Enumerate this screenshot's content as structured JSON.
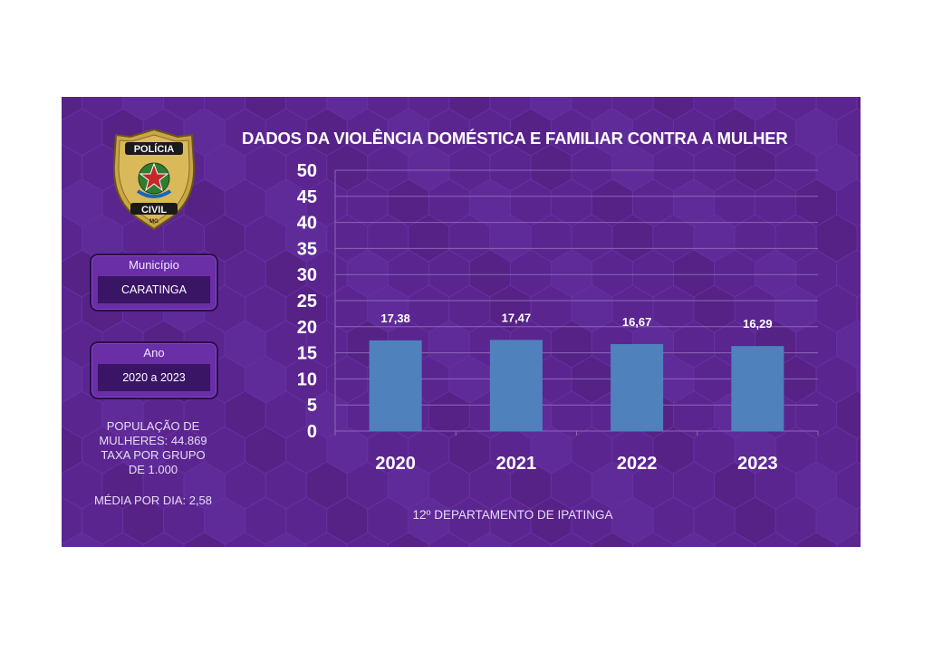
{
  "badge": {
    "top_text": "POLÍCIA",
    "bottom_text": "CIVIL",
    "state": "MG"
  },
  "filters": {
    "municipio": {
      "label": "Município",
      "value": "CARATINGA"
    },
    "ano": {
      "label": "Ano",
      "value": "2020 a 2023"
    }
  },
  "info": {
    "population": "POPULAÇÃO DE\nMULHERES: 44.869\nTAXA POR GRUPO\nDE 1.000",
    "daily_average": "MÉDIA POR DIA: 2,58"
  },
  "footer": "12º DEPARTAMENTO DE IPATINGA",
  "colors": {
    "panel": "#5b2590",
    "bar": "#4f81bd",
    "grid": "#8a68b4",
    "text": "#ffffff"
  },
  "chart_data": {
    "type": "bar",
    "title": "DADOS DA VIOLÊNCIA DOMÉSTICA E FAMILIAR CONTRA A MULHER",
    "categories": [
      "2020",
      "2021",
      "2022",
      "2023"
    ],
    "values": [
      17.38,
      17.47,
      16.67,
      16.29
    ],
    "value_labels": [
      "17,38",
      "17,47",
      "16,67",
      "16,29"
    ],
    "yticks": [
      "0",
      "5",
      "10",
      "15",
      "20",
      "25",
      "30",
      "35",
      "40",
      "45",
      "50"
    ],
    "ylim": [
      0,
      50
    ],
    "grid": true,
    "xlabel": "",
    "ylabel": ""
  }
}
